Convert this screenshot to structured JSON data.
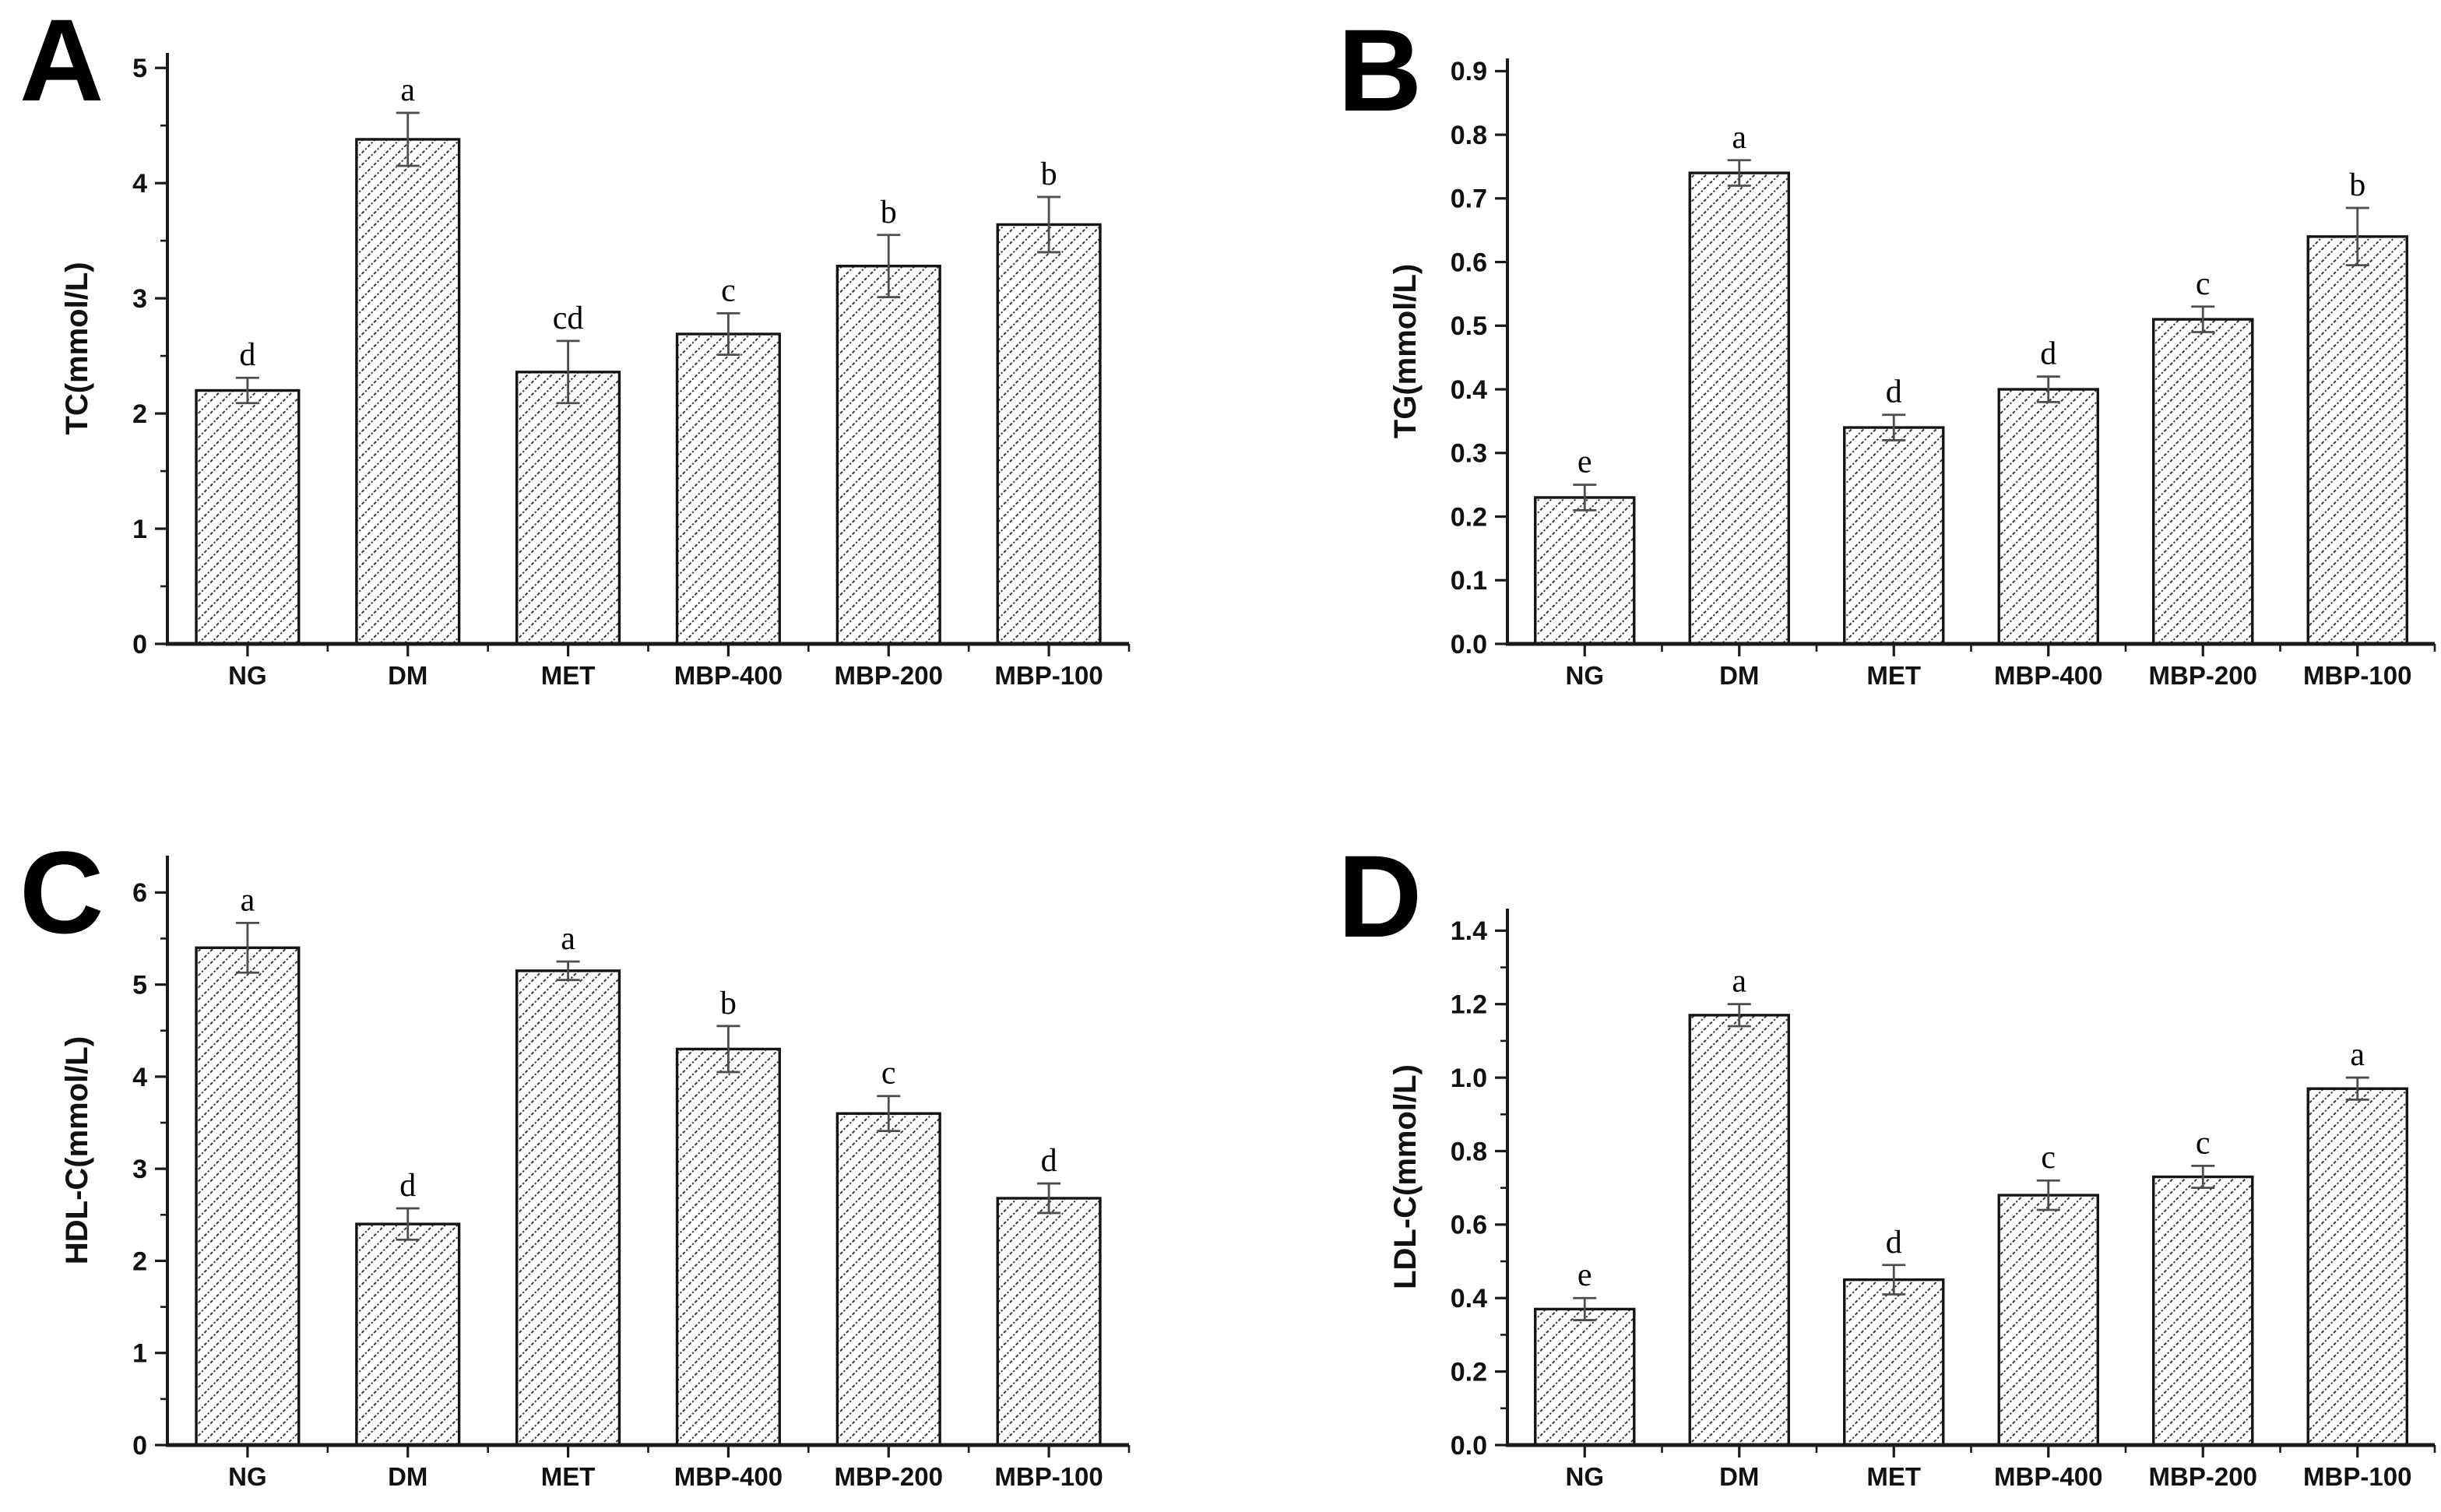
{
  "figure": {
    "background": "#ffffff",
    "description": "Four-panel bar chart figure of serum lipid levels (TC, TG, HDL-C, LDL-C) across treatment groups",
    "colors": {
      "hatch_line": "#2e2e2e",
      "bar_border": "#141414",
      "bar_fill": "#ffffff",
      "error_bar": "#4d4d4d",
      "axis_line": "#1a1a1a",
      "text": "#111111"
    }
  },
  "chart_data": [
    {
      "type": "bar",
      "panel_label": "A",
      "ylabel": "TC(mmol/L)",
      "xlabel": "",
      "categories": [
        "NG",
        "DM",
        "MET",
        "MBP-400",
        "MBP-200",
        "MBP-100"
      ],
      "values": [
        2.2,
        4.38,
        2.36,
        2.69,
        3.28,
        3.64
      ],
      "errors": [
        0.11,
        0.23,
        0.27,
        0.18,
        0.27,
        0.24
      ],
      "sig_letters": [
        "d",
        "a",
        "cd",
        "c",
        "b",
        "b"
      ],
      "ylim": [
        0,
        5
      ],
      "axis_max": 5.13,
      "ytick_values": [
        0,
        1,
        2,
        3,
        4,
        5
      ],
      "ytick_labels": [
        "0",
        "1",
        "2",
        "3",
        "4",
        "5"
      ],
      "minor_ticks": [
        0.5,
        1.5,
        2.5,
        3.5,
        4.5
      ],
      "bar_style": "diagonal-hatch",
      "grid": false,
      "legend": "none"
    },
    {
      "type": "bar",
      "panel_label": "B",
      "ylabel": "TG(mmol/L)",
      "xlabel": "",
      "categories": [
        "NG",
        "DM",
        "MET",
        "MBP-400",
        "MBP-200",
        "MBP-100"
      ],
      "values": [
        0.23,
        0.74,
        0.34,
        0.4,
        0.51,
        0.64
      ],
      "errors": [
        0.02,
        0.02,
        0.02,
        0.02,
        0.02,
        0.045
      ],
      "sig_letters": [
        "e",
        "a",
        "d",
        "d",
        "c",
        "b"
      ],
      "ylim": [
        0,
        0.9
      ],
      "axis_max": 0.92,
      "ytick_values": [
        0,
        0.1,
        0.2,
        0.3,
        0.4,
        0.5,
        0.6,
        0.7,
        0.8,
        0.9
      ],
      "ytick_labels": [
        "0.0",
        "0.1",
        "0.2",
        "0.3",
        "0.4",
        "0.5",
        "0.6",
        "0.7",
        "0.8",
        "0.9"
      ],
      "minor_ticks": [],
      "bar_style": "diagonal-hatch",
      "grid": false,
      "legend": "none"
    },
    {
      "type": "bar",
      "panel_label": "C",
      "ylabel": "HDL-C(mmol/L)",
      "xlabel": "",
      "categories": [
        "NG",
        "DM",
        "MET",
        "MBP-400",
        "MBP-200",
        "MBP-100"
      ],
      "values": [
        5.4,
        2.4,
        5.15,
        4.3,
        3.6,
        2.68
      ],
      "errors": [
        0.27,
        0.17,
        0.1,
        0.25,
        0.19,
        0.16
      ],
      "sig_letters": [
        "a",
        "d",
        "a",
        "b",
        "c",
        "d"
      ],
      "ylim": [
        0,
        6
      ],
      "axis_max": 6.4,
      "ytick_values": [
        0,
        1,
        2,
        3,
        4,
        5,
        6
      ],
      "ytick_labels": [
        "0",
        "1",
        "2",
        "3",
        "4",
        "5",
        "6"
      ],
      "minor_ticks": [
        0.5,
        1.5,
        2.5,
        3.5,
        4.5,
        5.5
      ],
      "bar_style": "diagonal-hatch",
      "grid": false,
      "legend": "none"
    },
    {
      "type": "bar",
      "panel_label": "D",
      "ylabel": "LDL-C(mmol/L)",
      "xlabel": "",
      "categories": [
        "NG",
        "DM",
        "MET",
        "MBP-400",
        "MBP-200",
        "MBP-100"
      ],
      "values": [
        0.37,
        1.17,
        0.45,
        0.68,
        0.73,
        0.97
      ],
      "errors": [
        0.03,
        0.03,
        0.04,
        0.04,
        0.03,
        0.03
      ],
      "sig_letters": [
        "e",
        "a",
        "d",
        "c",
        "c",
        "a"
      ],
      "ylim": [
        0,
        1.4
      ],
      "axis_max": 1.46,
      "ytick_values": [
        0,
        0.2,
        0.4,
        0.6,
        0.8,
        1.0,
        1.2,
        1.4
      ],
      "ytick_labels": [
        "0.0",
        "0.2",
        "0.4",
        "0.6",
        "0.8",
        "1.0",
        "1.2",
        "1.4"
      ],
      "minor_ticks": [
        0.1,
        0.3,
        0.5,
        0.7,
        0.9,
        1.1,
        1.3
      ],
      "bar_style": "diagonal-hatch",
      "grid": false,
      "legend": "none"
    }
  ]
}
